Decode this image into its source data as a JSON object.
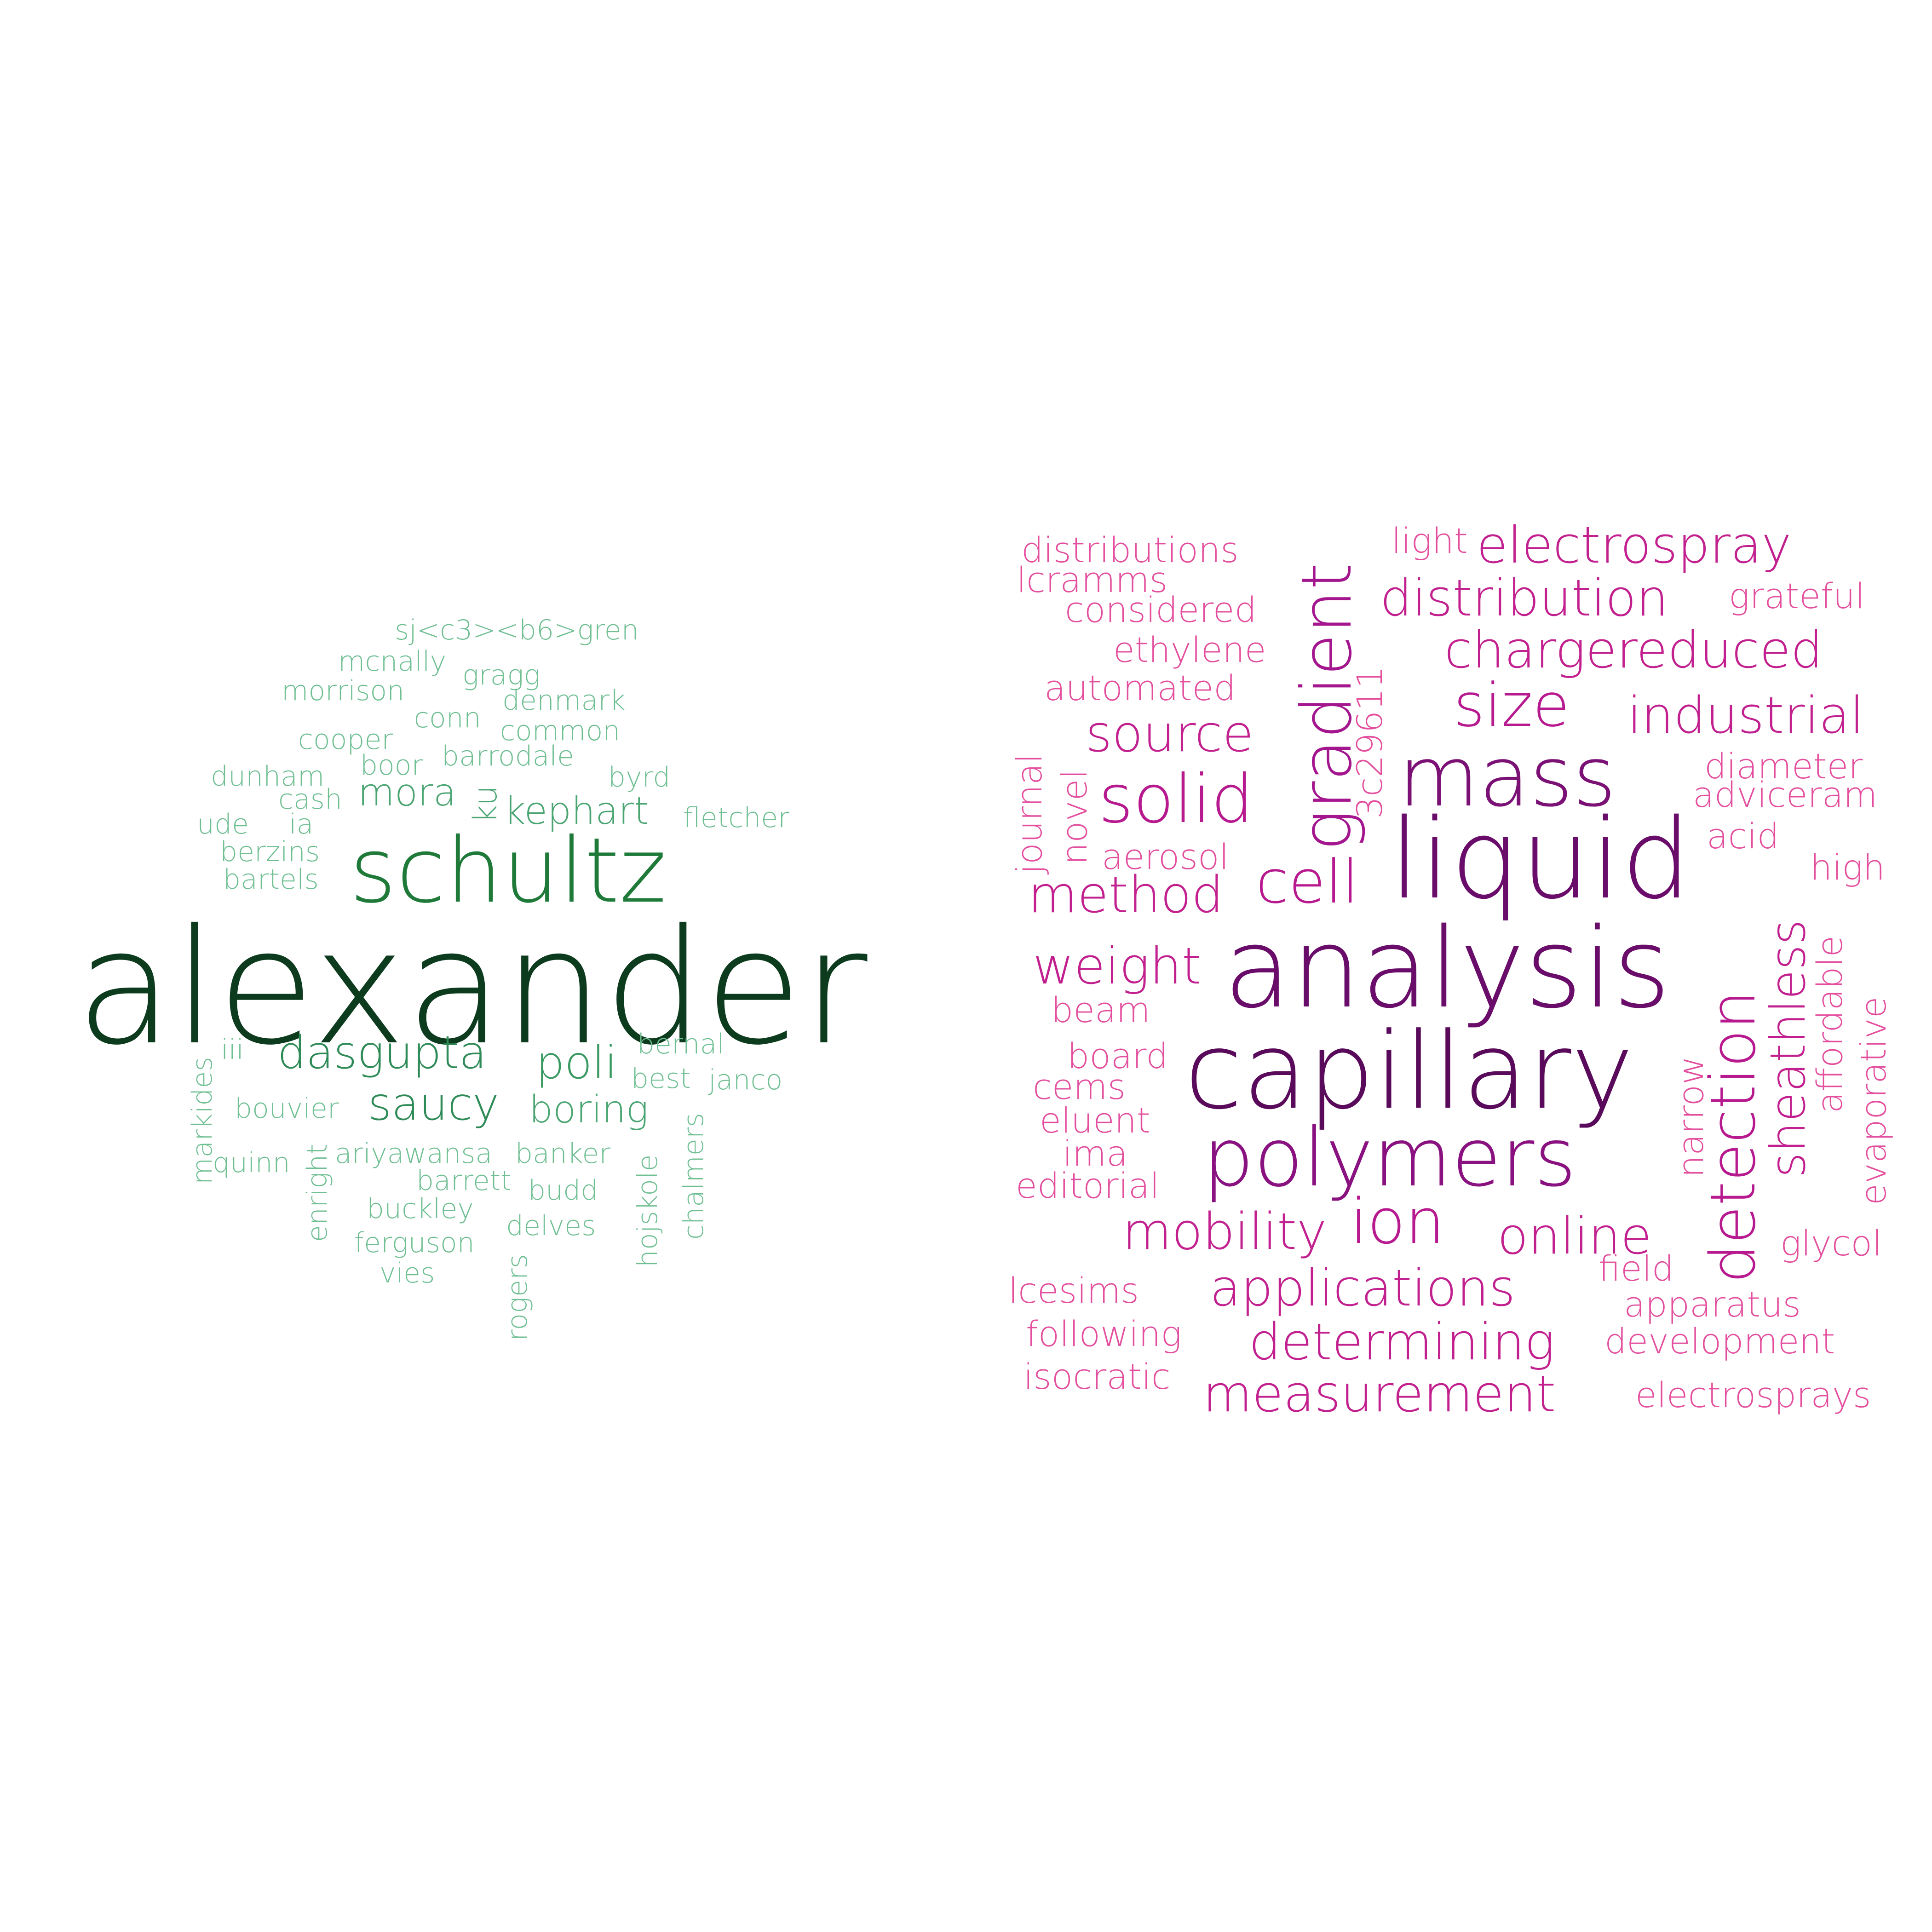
{
  "clouds": [
    {
      "name": "authors",
      "words": [
        {
          "text": "alexander",
          "color": "#0d3b1e"
        },
        {
          "text": "schultz",
          "color": "#1f7a3a"
        },
        {
          "text": "dasgupta",
          "color": "#2e8b57"
        },
        {
          "text": "saucy",
          "color": "#2e8b57"
        },
        {
          "text": "poli",
          "color": "#3a9a62"
        },
        {
          "text": "boring",
          "color": "#4aa572"
        },
        {
          "text": "kephart",
          "color": "#4aa572"
        },
        {
          "text": "mora",
          "color": "#4aa572"
        },
        {
          "text": "ku",
          "color": "#4aa572"
        },
        {
          "text": "sj<c3><b6>gren",
          "color": "#6fbf93"
        },
        {
          "text": "mcnally",
          "color": "#6fbf93"
        },
        {
          "text": "gragg",
          "color": "#6fbf93"
        },
        {
          "text": "morrison",
          "color": "#6fbf93"
        },
        {
          "text": "denmark",
          "color": "#6fbf93"
        },
        {
          "text": "conn",
          "color": "#6fbf93"
        },
        {
          "text": "cooper",
          "color": "#6fbf93"
        },
        {
          "text": "common",
          "color": "#6fbf93"
        },
        {
          "text": "boor",
          "color": "#6fbf93"
        },
        {
          "text": "barrodale",
          "color": "#6fbf93"
        },
        {
          "text": "dunham",
          "color": "#6fbf93"
        },
        {
          "text": "byrd",
          "color": "#6fbf93"
        },
        {
          "text": "cash",
          "color": "#6fbf93"
        },
        {
          "text": "ude",
          "color": "#6fbf93"
        },
        {
          "text": "ia",
          "color": "#6fbf93"
        },
        {
          "text": "fletcher",
          "color": "#6fbf93"
        },
        {
          "text": "berzins",
          "color": "#6fbf93"
        },
        {
          "text": "bartels",
          "color": "#6fbf93"
        },
        {
          "text": "iii",
          "color": "#6fbf93"
        },
        {
          "text": "bernal",
          "color": "#6fbf93"
        },
        {
          "text": "best",
          "color": "#6fbf93"
        },
        {
          "text": "janco",
          "color": "#6fbf93"
        },
        {
          "text": "bouvier",
          "color": "#6fbf93"
        },
        {
          "text": "markides",
          "color": "#6fbf93"
        },
        {
          "text": "quinn",
          "color": "#6fbf93"
        },
        {
          "text": "enright",
          "color": "#6fbf93"
        },
        {
          "text": "ariyawansa",
          "color": "#6fbf93"
        },
        {
          "text": "banker",
          "color": "#6fbf93"
        },
        {
          "text": "barrett",
          "color": "#6fbf93"
        },
        {
          "text": "budd",
          "color": "#6fbf93"
        },
        {
          "text": "buckley",
          "color": "#6fbf93"
        },
        {
          "text": "delves",
          "color": "#6fbf93"
        },
        {
          "text": "ferguson",
          "color": "#6fbf93"
        },
        {
          "text": "vies",
          "color": "#6fbf93"
        },
        {
          "text": "hojskole",
          "color": "#6fbf93"
        },
        {
          "text": "chalmers",
          "color": "#6fbf93"
        },
        {
          "text": "rogers",
          "color": "#6fbf93"
        }
      ]
    },
    {
      "name": "topics",
      "words": [
        {
          "text": "capillary",
          "color": "#5a0a5a"
        },
        {
          "text": "analysis",
          "color": "#6a0d6a"
        },
        {
          "text": "liquid",
          "color": "#6a0d6a"
        },
        {
          "text": "mass",
          "color": "#7b1075"
        },
        {
          "text": "polymers",
          "color": "#8a1280"
        },
        {
          "text": "gradient",
          "color": "#a4168e"
        },
        {
          "text": "detection",
          "color": "#b7198f"
        },
        {
          "text": "size",
          "color": "#b7198f"
        },
        {
          "text": "solid",
          "color": "#b7198f"
        },
        {
          "text": "ion",
          "color": "#b7198f"
        },
        {
          "text": "cell",
          "color": "#b7198f"
        },
        {
          "text": "electrospray",
          "color": "#c2208f"
        },
        {
          "text": "distribution",
          "color": "#c2208f"
        },
        {
          "text": "chargereduced",
          "color": "#c2208f"
        },
        {
          "text": "industrial",
          "color": "#c2208f"
        },
        {
          "text": "source",
          "color": "#c2208f"
        },
        {
          "text": "method",
          "color": "#c2208f"
        },
        {
          "text": "sheathless",
          "color": "#c2208f"
        },
        {
          "text": "weight",
          "color": "#c2208f"
        },
        {
          "text": "mobility",
          "color": "#c2208f"
        },
        {
          "text": "online",
          "color": "#c2208f"
        },
        {
          "text": "applications",
          "color": "#c2208f"
        },
        {
          "text": "determining",
          "color": "#c2208f"
        },
        {
          "text": "measurement",
          "color": "#c2208f"
        },
        {
          "text": "distributions",
          "color": "#e34f9e"
        },
        {
          "text": "light",
          "color": "#e34f9e"
        },
        {
          "text": "lcramms",
          "color": "#e34f9e"
        },
        {
          "text": "considered",
          "color": "#e34f9e"
        },
        {
          "text": "grateful",
          "color": "#e34f9e"
        },
        {
          "text": "ethylene",
          "color": "#e34f9e"
        },
        {
          "text": "3c29611",
          "color": "#e34f9e"
        },
        {
          "text": "automated",
          "color": "#e34f9e"
        },
        {
          "text": "journal",
          "color": "#e34f9e"
        },
        {
          "text": "novel",
          "color": "#e34f9e"
        },
        {
          "text": "diameter",
          "color": "#e34f9e"
        },
        {
          "text": "adviceram",
          "color": "#e34f9e"
        },
        {
          "text": "aerosol",
          "color": "#e34f9e"
        },
        {
          "text": "acid",
          "color": "#e34f9e"
        },
        {
          "text": "high",
          "color": "#e34f9e"
        },
        {
          "text": "affordable",
          "color": "#e34f9e"
        },
        {
          "text": "beam",
          "color": "#e34f9e"
        },
        {
          "text": "evaporative",
          "color": "#e34f9e"
        },
        {
          "text": "board",
          "color": "#e34f9e"
        },
        {
          "text": "narrow",
          "color": "#e34f9e"
        },
        {
          "text": "cems",
          "color": "#e34f9e"
        },
        {
          "text": "eluent",
          "color": "#e34f9e"
        },
        {
          "text": "ima",
          "color": "#e34f9e"
        },
        {
          "text": "editorial",
          "color": "#e34f9e"
        },
        {
          "text": "glycol",
          "color": "#e34f9e"
        },
        {
          "text": "field",
          "color": "#e34f9e"
        },
        {
          "text": "lcesims",
          "color": "#e34f9e"
        },
        {
          "text": "apparatus",
          "color": "#e34f9e"
        },
        {
          "text": "following",
          "color": "#e34f9e"
        },
        {
          "text": "development",
          "color": "#e34f9e"
        },
        {
          "text": "isocratic",
          "color": "#e34f9e"
        },
        {
          "text": "electrosprays",
          "color": "#e34f9e"
        }
      ]
    }
  ]
}
